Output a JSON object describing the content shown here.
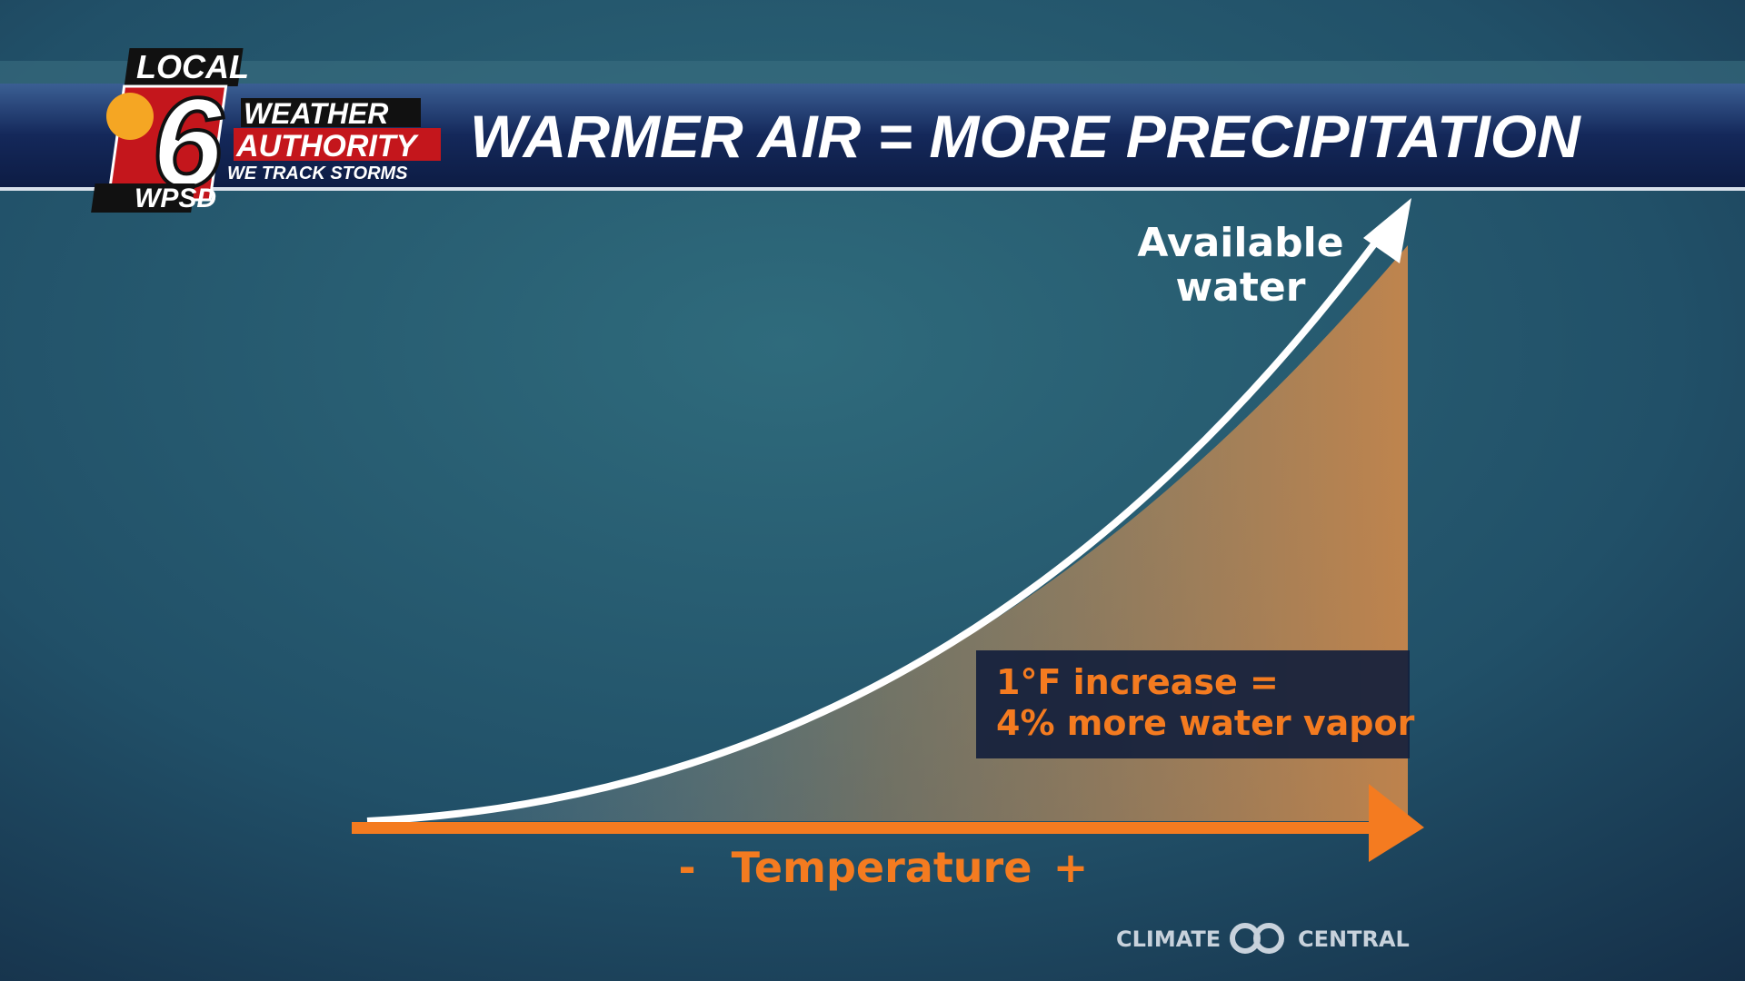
{
  "logo": {
    "top": "LOCAL",
    "number": "6",
    "line1": "WEATHER",
    "line2": "AUTHORITY",
    "tagline": "WE TRACK STORMS",
    "station": "WPSD"
  },
  "title": "WARMER AIR = MORE PRECIPITATION",
  "y_label": [
    "Available",
    "water"
  ],
  "callout": [
    "1°F increase =",
    "4% more water vapor"
  ],
  "x_axis": {
    "minus": "-",
    "label": "Temperature",
    "plus": "+"
  },
  "credit": {
    "left": "CLIMATE",
    "right": "CENTRAL"
  }
}
